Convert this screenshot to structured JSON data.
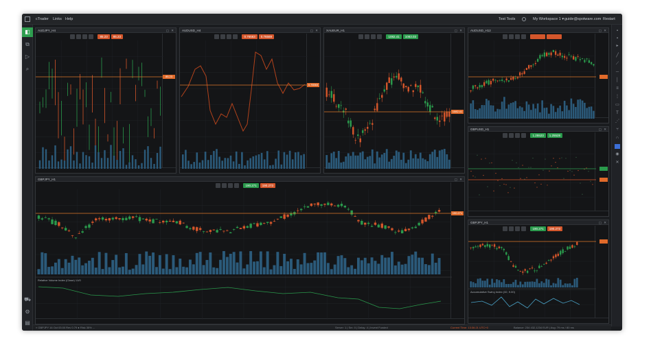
{
  "menubar": {
    "items": [
      "cTrader",
      "Links",
      "Help"
    ],
    "right": [
      "Test Tools",
      "My Workspace 1 ▾",
      "guide@spotware.com",
      "Restart"
    ]
  },
  "panels": {
    "audjpy": {
      "title": "AUDJPY_H4",
      "sell": "85.23",
      "buy": "85.23",
      "price": "85.23"
    },
    "audusd": {
      "title": "AUDUSD_H4",
      "sell": "0.76563",
      "buy": "0.76569",
      "price": "0.76563"
    },
    "xauusd": {
      "title": "XAUEUR_H1",
      "sell": "1082.41",
      "buy": "1083.03",
      "price": "1082.41"
    },
    "audusd2": {
      "title": "AUDUSD_H12"
    },
    "gbpjpy_main": {
      "title": "GBPJPY_H1",
      "sell": "190.271",
      "buy": "190.273",
      "price": "190.271"
    },
    "eurusd": {
      "title": "GBPUSD_H1",
      "sell": "1.25523",
      "buy": "1.25528"
    },
    "gbpjpy_small": {
      "title": "GBPJPY_H1",
      "sell": "190.271",
      "buy": "190.273"
    }
  },
  "indicators": {
    "main_sub": "Relative Volume Index (Close) 14/0",
    "small_sub": "Accumulative Swing Index (32, 9.00)"
  },
  "statusbar": {
    "left": "» GBPJPY 16 Oct 03:00 Rev 0.79 ● Risk 35% ...",
    "server": "Server: 1 | Sm: 0 | Delay: 4 | Invent Funded",
    "time": "Current Time: 13:36:21 UTC+0",
    "balance": "Balance: 234 432,1234 EUR | Avg: 79 ms / 80 ms"
  },
  "colors": {
    "bull": "#2a9a4c",
    "bear": "#d4562b",
    "price_line": "#e0772a",
    "volume": "#2b5a7a",
    "accent": "#2e9e4f"
  },
  "icons": [
    "window-icon",
    "chart-icon",
    "cursor-icon",
    "search-icon",
    "cart-icon",
    "gear-icon",
    "settings-icon"
  ]
}
